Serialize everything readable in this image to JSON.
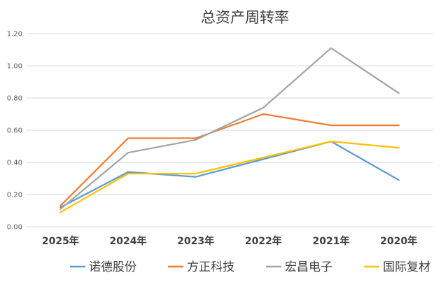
{
  "chart_data": {
    "type": "line",
    "title": "总资产周转率",
    "xlabel": "",
    "ylabel": "",
    "categories": [
      "2025年",
      "2024年",
      "2023年",
      "2022年",
      "2021年",
      "2020年"
    ],
    "ylim": [
      0,
      1.2
    ],
    "yticks": [
      "0.00",
      "0.20",
      "0.40",
      "0.60",
      "0.80",
      "1.00",
      "1.20"
    ],
    "grid": true,
    "legend_position": "bottom",
    "series": [
      {
        "name": "诺德股份",
        "color": "#5b9bd5",
        "values": [
          0.12,
          0.34,
          0.31,
          0.42,
          0.53,
          0.29
        ]
      },
      {
        "name": "方正科技",
        "color": "#ed7d31",
        "values": [
          0.13,
          0.55,
          0.55,
          0.7,
          0.63,
          0.63
        ]
      },
      {
        "name": "宏昌电子",
        "color": "#a5a5a5",
        "values": [
          0.11,
          0.46,
          0.54,
          0.74,
          1.11,
          0.83
        ]
      },
      {
        "name": "国际复材",
        "color": "#ffc000",
        "values": [
          0.09,
          0.33,
          0.33,
          0.43,
          0.53,
          0.49
        ]
      }
    ]
  }
}
